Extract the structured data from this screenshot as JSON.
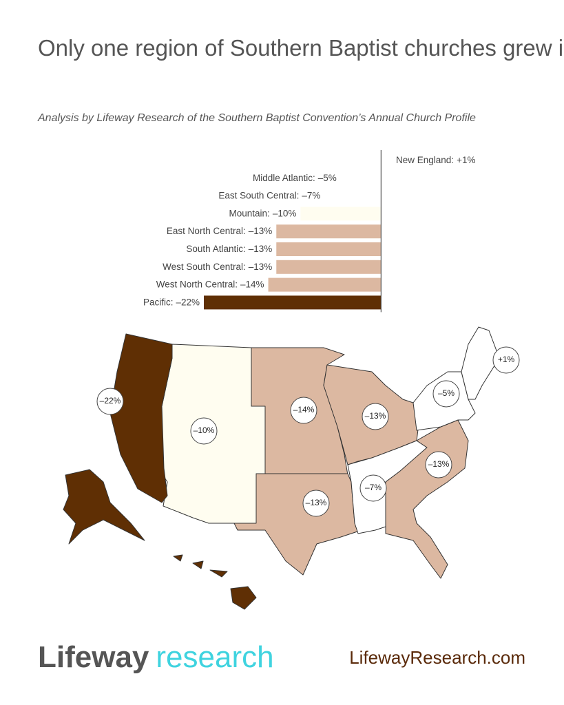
{
  "chart_data": {
    "type": "bar",
    "orientation": "horizontal",
    "title": "Only one region of Southern Baptist churches grew in the past five years",
    "subtitle": "Analysis by Lifeway Research of the Southern Baptist Convention’s Annual Church Profile",
    "categories": [
      "New England:",
      "Middle Atlantic:",
      "East South Central:",
      "Mountain:",
      "East North Central:",
      "South Atlantic:",
      "West South Central:",
      "West North Central:",
      "Pacific:"
    ],
    "values": [
      1,
      -5,
      -7,
      -10,
      -13,
      -13,
      -13,
      -14,
      -22
    ],
    "value_labels": [
      "+1%",
      "–5%",
      "–7%",
      "–10%",
      "–13%",
      "–13%",
      "–13%",
      "–14%",
      "–22%"
    ],
    "colors": [
      "#ffffff",
      "#ffffff",
      "#ffffff",
      "#fffdf0",
      "#dcb8a1",
      "#dcb8a1",
      "#dcb8a1",
      "#dcb8a1",
      "#5f2f04"
    ],
    "xlim": [
      -22,
      1
    ]
  },
  "footer": {
    "brand": "Lifeway",
    "brand_sub": "research",
    "url": "LifewayResearch.com"
  }
}
